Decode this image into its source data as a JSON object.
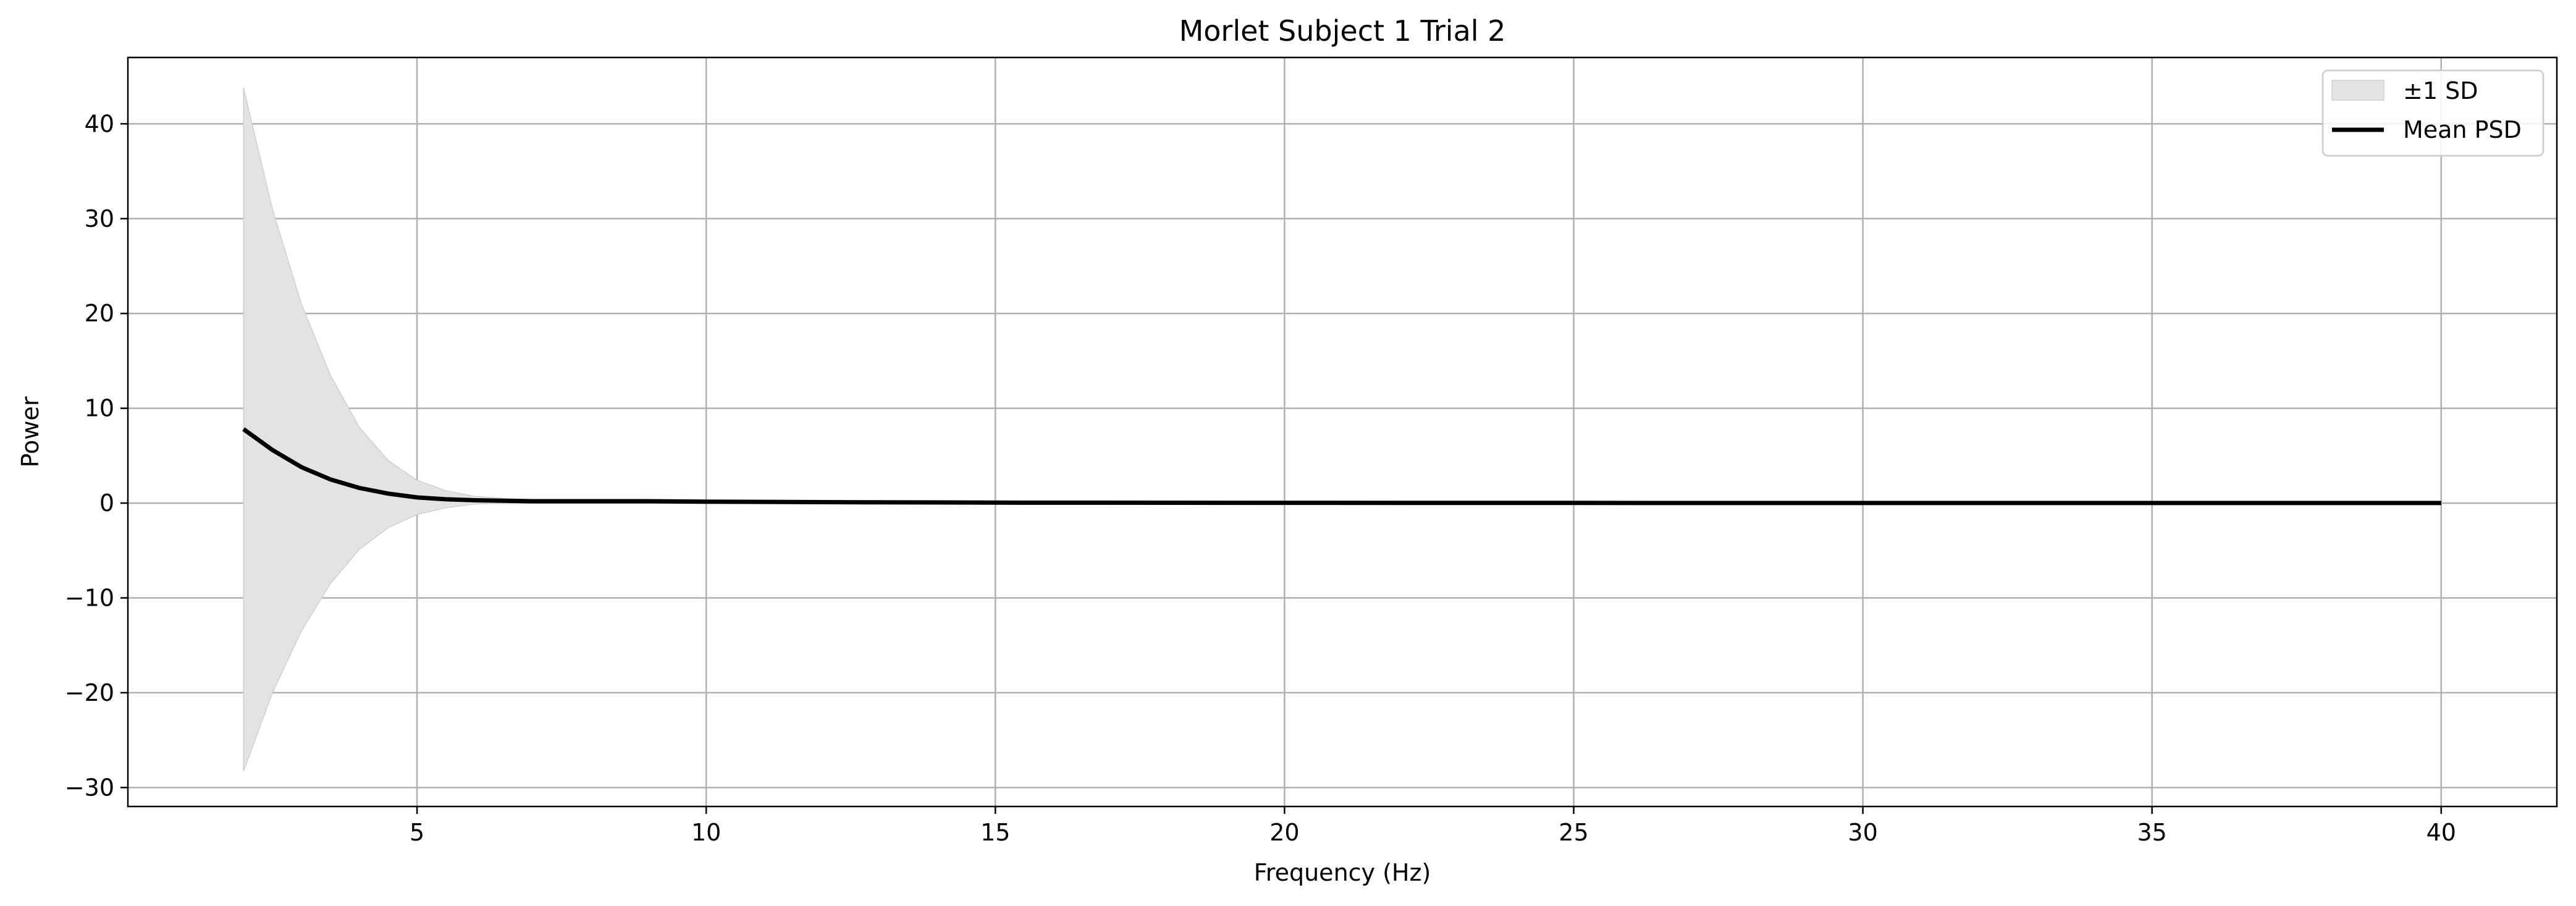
{
  "chart_data": {
    "type": "line",
    "title": "Morlet Subject 1 Trial 2",
    "xlabel": "Frequency (Hz)",
    "ylabel": "Power",
    "xlim": [
      0,
      42
    ],
    "ylim": [
      -32,
      47
    ],
    "xticks": [
      5,
      10,
      15,
      20,
      25,
      30,
      35,
      40
    ],
    "yticks": [
      -30,
      -20,
      -10,
      0,
      10,
      20,
      30,
      40
    ],
    "ytick_labels": [
      "−30",
      "−20",
      "−10",
      "0",
      "10",
      "20",
      "30",
      "40"
    ],
    "grid": true,
    "legend_position": "top-right",
    "colors": {
      "line": "#000000",
      "band": "#e3e3e3",
      "band_edge": "#d0d0d0",
      "grid": "#b0b0b0"
    },
    "series": [
      {
        "name": "Mean PSD",
        "kind": "line",
        "x": [
          2,
          2.5,
          3,
          3.5,
          4,
          4.5,
          5,
          5.5,
          6,
          6.5,
          7,
          8,
          9,
          10,
          12,
          15,
          20,
          25,
          30,
          35,
          40
        ],
        "y": [
          7.8,
          5.6,
          3.8,
          2.5,
          1.6,
          1.0,
          0.6,
          0.4,
          0.3,
          0.25,
          0.2,
          0.2,
          0.2,
          0.15,
          0.1,
          0.05,
          0.03,
          0.02,
          0.01,
          0.01,
          0.01
        ]
      },
      {
        "name": "±1 SD",
        "kind": "band",
        "x": [
          2,
          2.5,
          3,
          3.5,
          4,
          4.5,
          5,
          5.5,
          6,
          6.5,
          7,
          8,
          9,
          10,
          12,
          15,
          20,
          25,
          30,
          35,
          40
        ],
        "upper": [
          43.8,
          31.0,
          21.0,
          13.5,
          8.0,
          4.5,
          2.4,
          1.3,
          0.7,
          0.5,
          0.35,
          0.3,
          0.25,
          0.2,
          0.15,
          0.07,
          0.04,
          0.03,
          0.02,
          0.02,
          0.02
        ],
        "lower": [
          -28.3,
          -20.0,
          -13.5,
          -8.5,
          -4.9,
          -2.6,
          -1.2,
          -0.5,
          -0.1,
          0.0,
          0.05,
          0.1,
          0.15,
          0.1,
          0.05,
          0.03,
          0.02,
          0.01,
          0.0,
          0.0,
          0.0
        ]
      }
    ],
    "legend": [
      {
        "label": "±1 SD",
        "kind": "band"
      },
      {
        "label": "Mean PSD",
        "kind": "line"
      }
    ]
  }
}
